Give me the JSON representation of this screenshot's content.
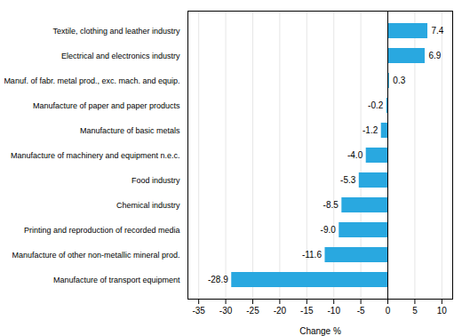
{
  "chart_data": {
    "type": "bar",
    "orientation": "horizontal",
    "categories": [
      "Manufacture of transport equipment",
      "Manufacture of other non-metallic mineral prod.",
      "Printing and reproduction of recorded media",
      "Chemical industry",
      "Food industry",
      "Manufacture of machinery and equipment n.e.c.",
      "Manufacture of basic metals",
      "Manufacture of paper and paper products",
      "Manuf. of fabr. metal prod., exc. mach. and equip.",
      "Electrical and electronics industry",
      "Textile, clothing and leather industry"
    ],
    "values": [
      -28.9,
      -11.6,
      -9.0,
      -8.5,
      -5.3,
      -4.0,
      -1.2,
      -0.2,
      0.3,
      6.9,
      7.4
    ],
    "value_labels": [
      "-28.9",
      "-11.6",
      "-9.0",
      "-8.5",
      "-5.3",
      "-4.0",
      "-1.2",
      "-0.2",
      "0.3",
      "6.9",
      "7.4"
    ],
    "color": "#29a8e0",
    "xlabel": "Change %",
    "xlim": [
      -37,
      12
    ],
    "xticks": [
      -35,
      -30,
      -25,
      -20,
      -15,
      -10,
      -5,
      0,
      5,
      10
    ],
    "grid": true,
    "data_labels": true
  }
}
